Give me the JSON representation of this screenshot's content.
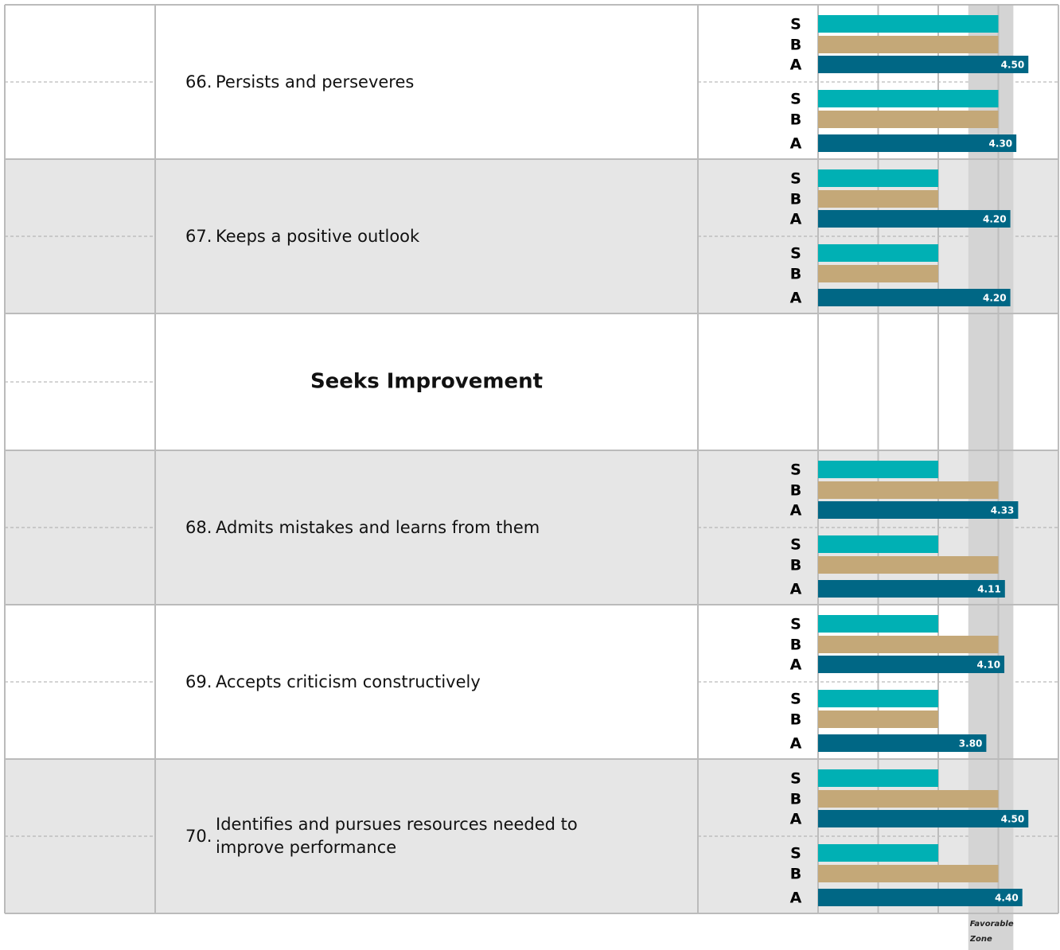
{
  "scale": {
    "min": 1,
    "max": 5,
    "ticks": [
      1,
      2,
      3,
      4,
      5
    ]
  },
  "favorable_zone": {
    "label": "Favorable Zone",
    "range": [
      3.5,
      4.25
    ]
  },
  "colors": [
    "#00b0b4",
    "#c4a878",
    "#006785"
  ],
  "rows": [
    {
      "number": "66.",
      "text": "Persists and perseveres",
      "shaded": false,
      "groups": [
        {
          "letters": [
            "S",
            "B",
            "A"
          ],
          "values": [
            4,
            4,
            4.5
          ],
          "a_label": "4.50"
        },
        {
          "letters": [
            "S",
            "B",
            "A"
          ],
          "values": [
            4,
            4,
            4.3
          ],
          "a_label": "4.30"
        }
      ]
    },
    {
      "number": "67.",
      "text": "Keeps a positive outlook",
      "shaded": true,
      "groups": [
        {
          "letters": [
            "S",
            "B",
            "A"
          ],
          "values": [
            3,
            3,
            4.2
          ],
          "a_label": "4.20"
        },
        {
          "letters": [
            "S",
            "B",
            "A"
          ],
          "values": [
            3,
            3,
            4.2
          ],
          "a_label": "4.20"
        }
      ]
    },
    {
      "heading": "Seeks Improvement",
      "shaded": false
    },
    {
      "number": "68.",
      "text": "Admits mistakes and learns from them",
      "shaded": true,
      "groups": [
        {
          "letters": [
            "S",
            "B",
            "A"
          ],
          "values": [
            3,
            4,
            4.33
          ],
          "a_label": "4.33"
        },
        {
          "letters": [
            "S",
            "B",
            "A"
          ],
          "values": [
            3,
            4,
            4.11
          ],
          "a_label": "4.11"
        }
      ]
    },
    {
      "number": "69.",
      "text": "Accepts criticism constructively",
      "shaded": false,
      "groups": [
        {
          "letters": [
            "S",
            "B",
            "A"
          ],
          "values": [
            3,
            4,
            4.1
          ],
          "a_label": "4.10"
        },
        {
          "letters": [
            "S",
            "B",
            "A"
          ],
          "values": [
            3,
            3,
            3.8
          ],
          "a_label": "3.80"
        }
      ]
    },
    {
      "number": "70.",
      "text": "Identifies and pursues resources needed to improve performance",
      "shaded": true,
      "groups": [
        {
          "letters": [
            "S",
            "B",
            "A"
          ],
          "values": [
            3,
            4,
            4.5
          ],
          "a_label": "4.50"
        },
        {
          "letters": [
            "S",
            "B",
            "A"
          ],
          "values": [
            3,
            4,
            4.4
          ],
          "a_label": "4.40"
        }
      ]
    }
  ]
}
